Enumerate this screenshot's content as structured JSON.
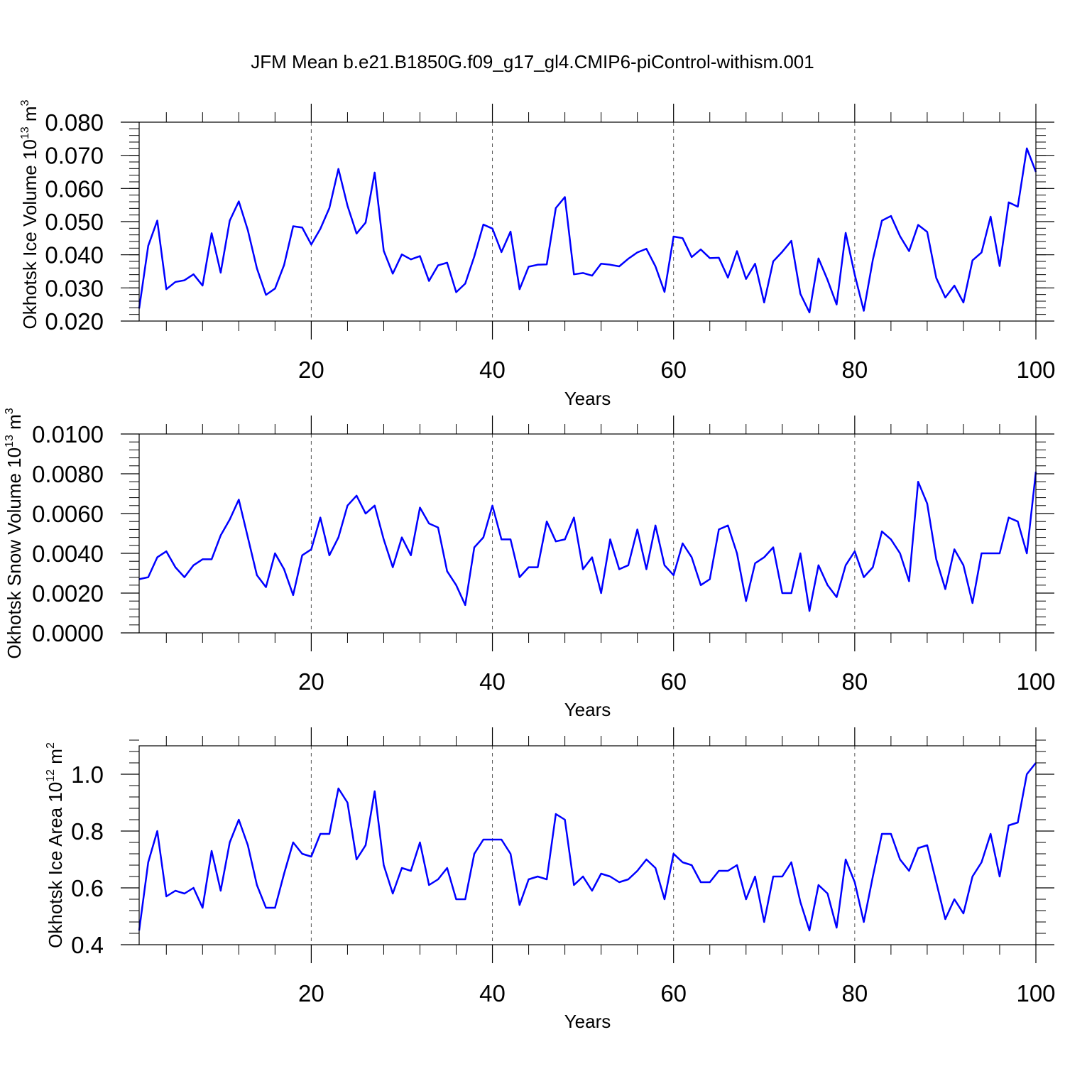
{
  "title": "JFM Mean b.e21.B1850G.f09_g17_gl4.CMIP6-piControl-withism.001",
  "line_color": "#0000ff",
  "chart_data": [
    {
      "type": "line",
      "name": "ice-volume",
      "ylabel_main": "Okhotsk Ice Volume 10",
      "ylabel_exp": "13",
      "ylabel_unit": " m",
      "ylabel_unit_exp": "3",
      "xlabel": "Years",
      "xlim": [
        1,
        100
      ],
      "ylim": [
        0.02,
        0.08
      ],
      "xticks": [
        20,
        40,
        60,
        80,
        100
      ],
      "xtick_labels": [
        "20",
        "40",
        "60",
        "80",
        "100"
      ],
      "yticks": [
        0.02,
        0.03,
        0.04,
        0.05,
        0.06,
        0.07,
        0.08
      ],
      "ytick_labels": [
        "0.020",
        "0.030",
        "0.040",
        "0.050",
        "0.060",
        "0.070",
        "0.080"
      ],
      "y_minor_step": 0.002,
      "x_minor_step": 4,
      "grid": "dashed vertical at major x ticks",
      "x": [
        1,
        2,
        3,
        4,
        5,
        6,
        7,
        8,
        9,
        10,
        11,
        12,
        13,
        14,
        15,
        16,
        17,
        18,
        19,
        20,
        21,
        22,
        23,
        24,
        25,
        26,
        27,
        28,
        29,
        30,
        31,
        32,
        33,
        34,
        35,
        36,
        37,
        38,
        39,
        40,
        41,
        42,
        43,
        44,
        45,
        46,
        47,
        48,
        49,
        50,
        51,
        52,
        53,
        54,
        55,
        56,
        57,
        58,
        59,
        60,
        61,
        62,
        63,
        64,
        65,
        66,
        67,
        68,
        69,
        70,
        71,
        72,
        73,
        74,
        75,
        76,
        77,
        78,
        79,
        80,
        81,
        82,
        83,
        84,
        85,
        86,
        87,
        88,
        89,
        90,
        91,
        92,
        93,
        94,
        95,
        96,
        97,
        98,
        99,
        100
      ],
      "values": [
        0.0238,
        0.0427,
        0.0503,
        0.0296,
        0.0318,
        0.0323,
        0.0341,
        0.0307,
        0.0465,
        0.0346,
        0.0503,
        0.0561,
        0.0474,
        0.0359,
        0.0279,
        0.0298,
        0.0369,
        0.0486,
        0.0482,
        0.0431,
        0.0478,
        0.0541,
        0.0659,
        0.0548,
        0.0464,
        0.0497,
        0.0648,
        0.0412,
        0.0343,
        0.0401,
        0.0386,
        0.0396,
        0.0321,
        0.0368,
        0.0376,
        0.0287,
        0.0313,
        0.0395,
        0.0491,
        0.0479,
        0.0408,
        0.047,
        0.0296,
        0.0364,
        0.037,
        0.0371,
        0.0541,
        0.0574,
        0.0341,
        0.0345,
        0.0337,
        0.0373,
        0.037,
        0.0365,
        0.0388,
        0.0407,
        0.0418,
        0.0365,
        0.0288,
        0.0455,
        0.045,
        0.0393,
        0.0416,
        0.039,
        0.0391,
        0.0331,
        0.0411,
        0.0327,
        0.0373,
        0.0256,
        0.038,
        0.0409,
        0.0442,
        0.0282,
        0.0226,
        0.0389,
        0.0324,
        0.025,
        0.0466,
        0.034,
        0.0231,
        0.0385,
        0.0503,
        0.0517,
        0.0456,
        0.0411,
        0.049,
        0.0469,
        0.033,
        0.0271,
        0.0307,
        0.0256,
        0.0383,
        0.0407,
        0.0515,
        0.0366,
        0.0558,
        0.0545,
        0.0721,
        0.065
      ]
    },
    {
      "type": "line",
      "name": "snow-volume",
      "ylabel_main": "Okhotsk Snow Volume 10",
      "ylabel_exp": "13",
      "ylabel_unit": " m",
      "ylabel_unit_exp": "3",
      "xlabel": "Years",
      "xlim": [
        1,
        100
      ],
      "ylim": [
        0.0,
        0.01
      ],
      "xticks": [
        20,
        40,
        60,
        80,
        100
      ],
      "xtick_labels": [
        "20",
        "40",
        "60",
        "80",
        "100"
      ],
      "yticks": [
        0.0,
        0.002,
        0.004,
        0.006,
        0.008,
        0.01
      ],
      "ytick_labels": [
        "0.0000",
        "0.0020",
        "0.0040",
        "0.0060",
        "0.0080",
        "0.0100"
      ],
      "y_minor_step": 0.0004,
      "x_minor_step": 4,
      "grid": "dashed vertical at major x ticks",
      "x": [
        1,
        2,
        3,
        4,
        5,
        6,
        7,
        8,
        9,
        10,
        11,
        12,
        13,
        14,
        15,
        16,
        17,
        18,
        19,
        20,
        21,
        22,
        23,
        24,
        25,
        26,
        27,
        28,
        29,
        30,
        31,
        32,
        33,
        34,
        35,
        36,
        37,
        38,
        39,
        40,
        41,
        42,
        43,
        44,
        45,
        46,
        47,
        48,
        49,
        50,
        51,
        52,
        53,
        54,
        55,
        56,
        57,
        58,
        59,
        60,
        61,
        62,
        63,
        64,
        65,
        66,
        67,
        68,
        69,
        70,
        71,
        72,
        73,
        74,
        75,
        76,
        77,
        78,
        79,
        80,
        81,
        82,
        83,
        84,
        85,
        86,
        87,
        88,
        89,
        90,
        91,
        92,
        93,
        94,
        95,
        96,
        97,
        98,
        99,
        100
      ],
      "values": [
        0.0027,
        0.0028,
        0.0038,
        0.0041,
        0.0033,
        0.0028,
        0.0034,
        0.0037,
        0.0037,
        0.0049,
        0.0057,
        0.0067,
        0.0048,
        0.0029,
        0.0023,
        0.004,
        0.0032,
        0.0019,
        0.0039,
        0.0042,
        0.0058,
        0.0039,
        0.0048,
        0.0064,
        0.0069,
        0.006,
        0.0064,
        0.0047,
        0.0033,
        0.0048,
        0.0039,
        0.0063,
        0.0055,
        0.0053,
        0.0031,
        0.0024,
        0.0014,
        0.0043,
        0.0048,
        0.0064,
        0.0047,
        0.0047,
        0.0028,
        0.0033,
        0.0033,
        0.0056,
        0.0046,
        0.0047,
        0.0058,
        0.0032,
        0.0038,
        0.002,
        0.0047,
        0.0032,
        0.0034,
        0.0052,
        0.0032,
        0.0054,
        0.0034,
        0.0029,
        0.0045,
        0.0038,
        0.0024,
        0.0027,
        0.0052,
        0.0054,
        0.004,
        0.0016,
        0.0035,
        0.0038,
        0.0043,
        0.002,
        0.002,
        0.004,
        0.0011,
        0.0034,
        0.0024,
        0.0018,
        0.0034,
        0.0041,
        0.0028,
        0.0033,
        0.0051,
        0.0047,
        0.004,
        0.0026,
        0.0076,
        0.0065,
        0.0037,
        0.0022,
        0.0042,
        0.0034,
        0.0015,
        0.004,
        0.004,
        0.004,
        0.0058,
        0.0056,
        0.004,
        0.0081
      ]
    },
    {
      "type": "line",
      "name": "ice-area",
      "ylabel_main": "Okhotsk Ice Area 10",
      "ylabel_exp": "12",
      "ylabel_unit": " m",
      "ylabel_unit_exp": "2",
      "xlabel": "Years",
      "xlim": [
        1,
        100
      ],
      "ylim": [
        0.4,
        1.1
      ],
      "xticks": [
        20,
        40,
        60,
        80,
        100
      ],
      "xtick_labels": [
        "20",
        "40",
        "60",
        "80",
        "100"
      ],
      "yticks": [
        0.4,
        0.6,
        0.8,
        1.0
      ],
      "ytick_labels": [
        "0.4",
        "0.6",
        "0.8",
        "1.0"
      ],
      "y_minor_step": 0.04,
      "x_minor_step": 4,
      "grid": "dashed vertical at major x ticks",
      "x": [
        1,
        2,
        3,
        4,
        5,
        6,
        7,
        8,
        9,
        10,
        11,
        12,
        13,
        14,
        15,
        16,
        17,
        18,
        19,
        20,
        21,
        22,
        23,
        24,
        25,
        26,
        27,
        28,
        29,
        30,
        31,
        32,
        33,
        34,
        35,
        36,
        37,
        38,
        39,
        40,
        41,
        42,
        43,
        44,
        45,
        46,
        47,
        48,
        49,
        50,
        51,
        52,
        53,
        54,
        55,
        56,
        57,
        58,
        59,
        60,
        61,
        62,
        63,
        64,
        65,
        66,
        67,
        68,
        69,
        70,
        71,
        72,
        73,
        74,
        75,
        76,
        77,
        78,
        79,
        80,
        81,
        82,
        83,
        84,
        85,
        86,
        87,
        88,
        89,
        90,
        91,
        92,
        93,
        94,
        95,
        96,
        97,
        98,
        99,
        100
      ],
      "values": [
        0.45,
        0.69,
        0.8,
        0.57,
        0.59,
        0.58,
        0.6,
        0.53,
        0.73,
        0.59,
        0.76,
        0.84,
        0.75,
        0.61,
        0.53,
        0.53,
        0.65,
        0.76,
        0.72,
        0.71,
        0.79,
        0.79,
        0.95,
        0.9,
        0.7,
        0.75,
        0.94,
        0.68,
        0.58,
        0.67,
        0.66,
        0.76,
        0.61,
        0.63,
        0.67,
        0.56,
        0.56,
        0.72,
        0.77,
        0.77,
        0.77,
        0.72,
        0.54,
        0.63,
        0.64,
        0.63,
        0.86,
        0.84,
        0.61,
        0.64,
        0.59,
        0.65,
        0.64,
        0.62,
        0.63,
        0.66,
        0.7,
        0.67,
        0.56,
        0.72,
        0.69,
        0.68,
        0.62,
        0.62,
        0.66,
        0.66,
        0.68,
        0.56,
        0.64,
        0.48,
        0.64,
        0.64,
        0.69,
        0.55,
        0.45,
        0.61,
        0.58,
        0.46,
        0.7,
        0.62,
        0.48,
        0.64,
        0.79,
        0.79,
        0.7,
        0.66,
        0.74,
        0.75,
        0.62,
        0.49,
        0.56,
        0.51,
        0.64,
        0.69,
        0.79,
        0.64,
        0.82,
        0.83,
        1.0,
        1.04
      ]
    }
  ]
}
